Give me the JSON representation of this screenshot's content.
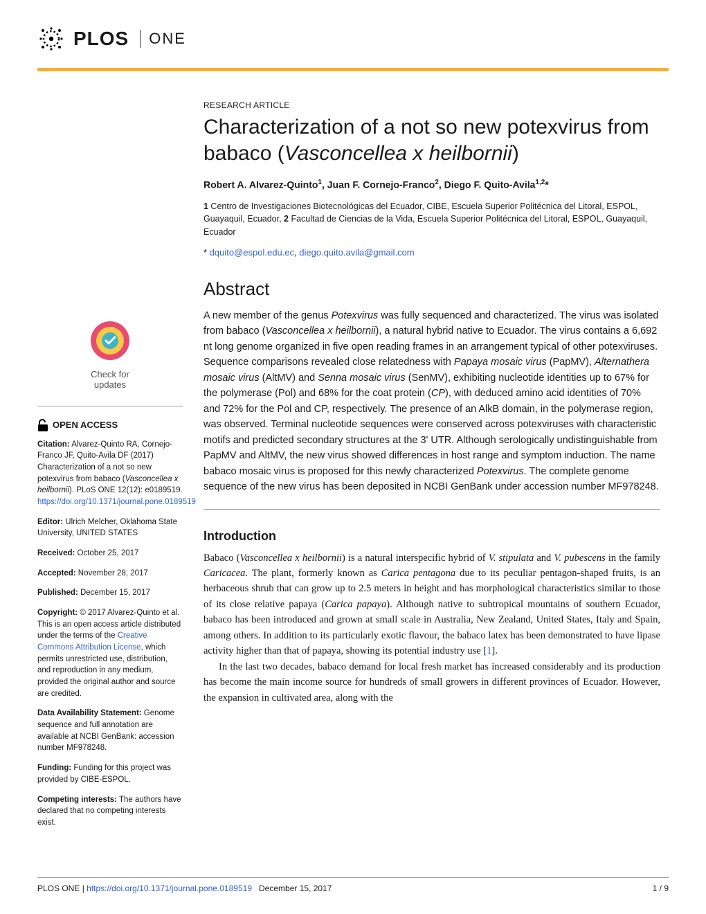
{
  "journal": {
    "name_bold": "PLOS",
    "name_light": "ONE"
  },
  "article": {
    "type": "RESEARCH ARTICLE",
    "title_html": "Characterization of a not so new potexvirus from babaco (<em>Vasconcellea x heilbornii</em>)",
    "authors_html": "Robert A. Alvarez-Quinto<sup>1</sup>, Juan F. Cornejo-Franco<sup>2</sup>, Diego F. Quito-Avila<sup>1,2</sup>*",
    "affiliations_html": "<b>1</b> Centro de Investigaciones Biotecnológicas del Ecuador, CIBE, Escuela Superior Politécnica del Litoral, ESPOL, Guayaquil, Ecuador, <b>2</b> Facultad de Ciencias de la Vida, Escuela Superior Politécnica del Litoral, ESPOL, Guayaquil, Ecuador",
    "corr_prefix": "* ",
    "email1": "dquito@espol.edu.ec",
    "email_sep": ", ",
    "email2": "diego.quito.avila@gmail.com"
  },
  "abstract": {
    "title": "Abstract",
    "text_html": "A new member of the genus <em>Potexvirus</em> was fully sequenced and characterized. The virus was isolated from babaco (<em>Vasconcellea x heilbornii</em>), a natural hybrid native to Ecuador. The virus contains a 6,692 nt long genome organized in five open reading frames in an arrangement typical of other potexviruses. Sequence comparisons revealed close relatedness with <em>Papaya mosaic virus</em> (PapMV), <em>Alternathera mosaic virus</em> (AltMV) and <em>Senna mosaic virus</em> (SenMV), exhibiting nucleotide identities up to 67% for the polymerase (Pol) and 68% for the coat protein (<em>CP</em>), with deduced amino acid identities of 70% and 72% for the Pol and CP, respectively. The presence of an AlkB domain, in the polymerase region, was observed. Terminal nucleotide sequences were conserved across potexviruses with characteristic motifs and predicted secondary structures at the 3' UTR. Although serologically undistinguishable from PapMV and AltMV, the new virus showed differences in host range and symptom induction. The name babaco mosaic virus is proposed for this newly characterized <em>Potexvirus</em>. The complete genome sequence of the new virus has been deposited in NCBI GenBank under accession number MF978248."
  },
  "intro": {
    "title": "Introduction",
    "p1_html": "Babaco (<em>Vasconcellea x heilbornii</em>) is a natural interspecific hybrid of <em>V. stipulata</em> and <em>V. pubescens</em> in the family <em>Caricacea</em>. The plant, formerly known as <em>Carica pentagona</em> due to its peculiar pentagon-shaped fruits, is an herbaceous shrub that can grow up to 2.5 meters in height and has morphological characteristics similar to those of its close relative papaya (<em>Carica papaya</em>). Although native to subtropical mountains of southern Ecuador, babaco has been introduced and grown at small scale in Australia, New Zealand, United States, Italy and Spain, among others. In addition to its particularly exotic flavour, the babaco latex has been demonstrated to have lipase activity higher than that of papaya, showing its potential industry use [<span class=\"ref-link\">1</span>].",
    "p2_html": "In the last two decades, babaco demand for local fresh market has increased considerably and its production has become the main income source for hundreds of small growers in different provinces of Ecuador. However, the expansion in cultivated area, along with the"
  },
  "sidebar": {
    "check_line1": "Check for",
    "check_line2": "updates",
    "open_access": "OPEN ACCESS",
    "citation_label": "Citation:",
    "citation_text_html": " Alvarez-Quinto RA, Cornejo-Franco JF, Quito-Avila DF (2017) Characterization of a not so new potexvirus from babaco (<em>Vasconcellea x heilbornii</em>). PLoS ONE 12(12): e0189519. ",
    "citation_link": "https://doi.org/10.1371/journal.pone.0189519",
    "editor_label": "Editor:",
    "editor_text": " Ulrich Melcher, Oklahoma State University, UNITED STATES",
    "received_label": "Received:",
    "received_text": " October 25, 2017",
    "accepted_label": "Accepted:",
    "accepted_text": " November 28, 2017",
    "published_label": "Published:",
    "published_text": " December 15, 2017",
    "copyright_label": "Copyright:",
    "copyright_text_pre": " © 2017 Alvarez-Quinto et al. This is an open access article distributed under the terms of the ",
    "copyright_link": "Creative Commons Attribution License",
    "copyright_text_post": ", which permits unrestricted use, distribution, and reproduction in any medium, provided the original author and source are credited.",
    "data_label": "Data Availability Statement:",
    "data_text": " Genome sequence and full annotation are available at NCBI GenBank: accession number MF978248.",
    "funding_label": "Funding:",
    "funding_text": " Funding for this project was provided by CIBE-ESPOL.",
    "competing_label": "Competing interests:",
    "competing_text": " The authors have declared that no competing interests exist."
  },
  "footer": {
    "journal": "PLOS ONE | ",
    "doi": "https://doi.org/10.1371/journal.pone.0189519",
    "date": "December 15, 2017",
    "page": "1 / 9"
  },
  "colors": {
    "accent": "#f8af2d",
    "link": "#3060cf",
    "check_outer": "#e94b6e",
    "check_inner": "#3fb4c5"
  }
}
